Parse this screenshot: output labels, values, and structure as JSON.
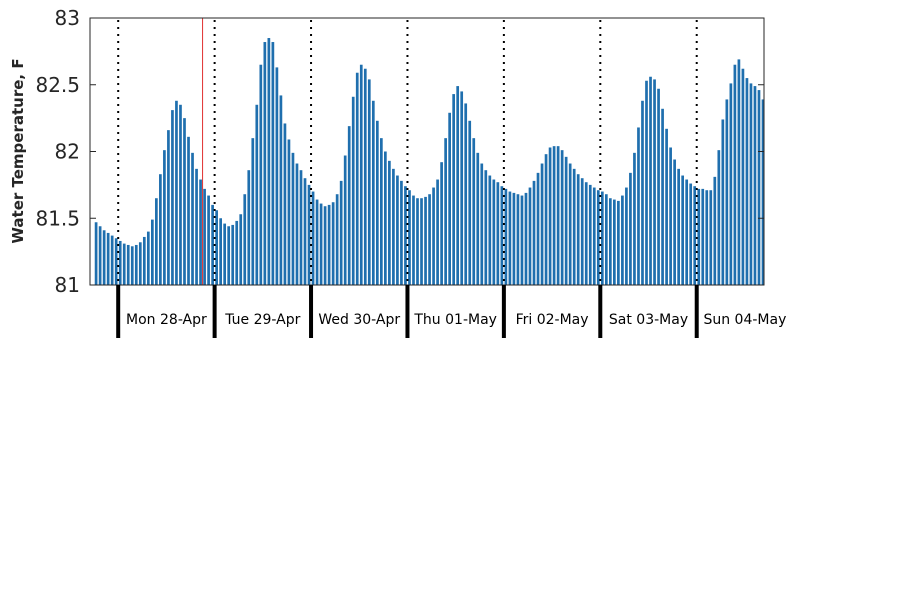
{
  "chart_data": {
    "type": "bar",
    "ylabel": "Water Temperature, F",
    "ylim": [
      81,
      83
    ],
    "yticks": [
      "81",
      "81.5",
      "82",
      "82.5",
      "83"
    ],
    "bar_color": "#1f6fae",
    "marker_color": "#e03030",
    "grid": false,
    "days": [
      "Mon 28-Apr",
      "Tue 29-Apr",
      "Wed 30-Apr",
      "Thu 01-May",
      "Fri 02-May",
      "Sat 03-May",
      "Sun 04-May"
    ],
    "marker_hour": 21,
    "x_start": "2025-04-27 18:00",
    "bar_interval_hours": 1,
    "values": [
      81.47,
      81.44,
      81.41,
      81.39,
      81.37,
      81.35,
      81.33,
      81.31,
      81.3,
      81.29,
      81.3,
      81.32,
      81.36,
      81.4,
      81.49,
      81.65,
      81.83,
      82.01,
      82.16,
      82.31,
      82.38,
      82.35,
      82.25,
      82.11,
      81.99,
      81.87,
      81.79,
      81.72,
      81.67,
      81.6,
      81.56,
      81.5,
      81.46,
      81.44,
      81.45,
      81.48,
      81.53,
      81.68,
      81.86,
      82.1,
      82.35,
      82.65,
      82.82,
      82.85,
      82.82,
      82.63,
      82.42,
      82.21,
      82.09,
      81.99,
      81.91,
      81.86,
      81.8,
      81.75,
      81.7,
      81.64,
      81.61,
      81.59,
      81.6,
      81.62,
      81.68,
      81.78,
      81.97,
      82.19,
      82.41,
      82.59,
      82.65,
      82.62,
      82.54,
      82.38,
      82.23,
      82.1,
      82.0,
      81.93,
      81.87,
      81.82,
      81.78,
      81.74,
      81.71,
      81.67,
      81.65,
      81.65,
      81.66,
      81.68,
      81.73,
      81.79,
      81.92,
      82.1,
      82.29,
      82.43,
      82.49,
      82.45,
      82.36,
      82.23,
      82.1,
      81.99,
      81.91,
      81.86,
      81.82,
      81.79,
      81.77,
      81.74,
      81.72,
      81.7,
      81.69,
      81.68,
      81.67,
      81.69,
      81.73,
      81.78,
      81.84,
      81.91,
      81.98,
      82.03,
      82.04,
      82.04,
      82.01,
      81.96,
      81.91,
      81.87,
      81.83,
      81.8,
      81.77,
      81.75,
      81.73,
      81.71,
      81.7,
      81.68,
      81.65,
      81.64,
      81.63,
      81.67,
      81.73,
      81.84,
      81.99,
      82.18,
      82.38,
      82.53,
      82.56,
      82.54,
      82.47,
      82.32,
      82.17,
      82.03,
      81.94,
      81.87,
      81.82,
      81.79,
      81.76,
      81.74,
      81.72,
      81.72,
      81.71,
      81.71,
      81.81,
      82.01,
      82.24,
      82.39,
      82.51,
      82.65,
      82.69,
      82.62,
      82.55,
      82.51,
      82.49,
      82.46,
      82.39
    ]
  }
}
